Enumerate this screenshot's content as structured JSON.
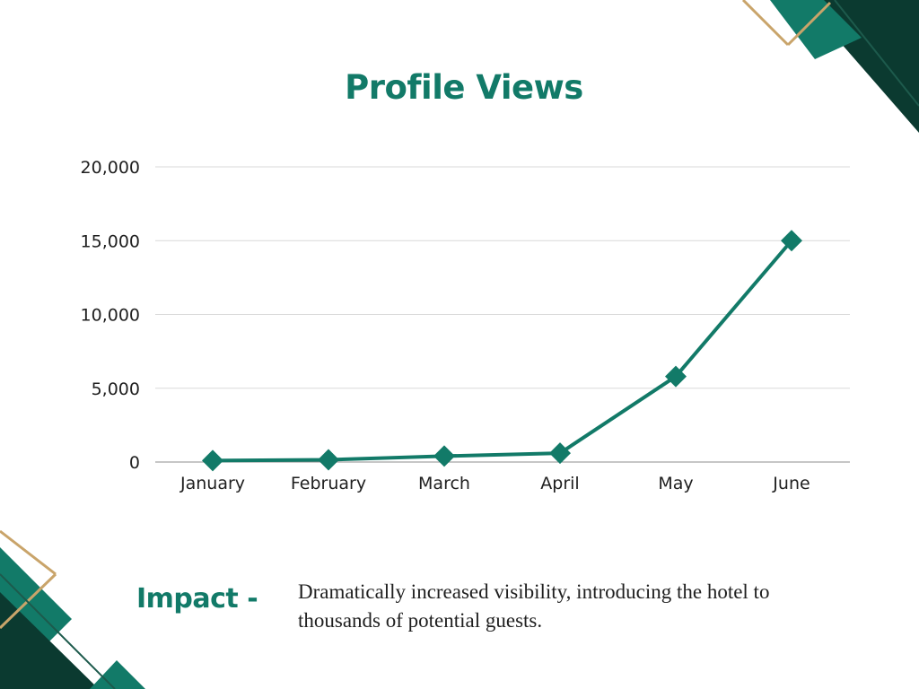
{
  "colors": {
    "accent": "#127a68",
    "dark": "#0b3a30",
    "gold": "#c9a46a",
    "grid": "#d9d9d9",
    "text": "#1f1f1f"
  },
  "chart_data": {
    "type": "line",
    "title": "Profile Views",
    "xlabel": "",
    "ylabel": "",
    "categories": [
      "January",
      "February",
      "March",
      "April",
      "May",
      "June"
    ],
    "series": [
      {
        "values": [
          100,
          150,
          400,
          600,
          5800,
          15000
        ]
      }
    ],
    "ylim": [
      0,
      20000
    ],
    "yticks": [
      0,
      5000,
      10000,
      15000,
      20000
    ],
    "ytick_labels": [
      "0",
      "5,000",
      "10,000",
      "15,000",
      "20,000"
    ],
    "grid": true,
    "marker": "diamond",
    "line_color": "#127a68"
  },
  "impact": {
    "label": "Impact -",
    "text": "Dramatically increased visibility, introducing the hotel to thousands of potential guests."
  }
}
